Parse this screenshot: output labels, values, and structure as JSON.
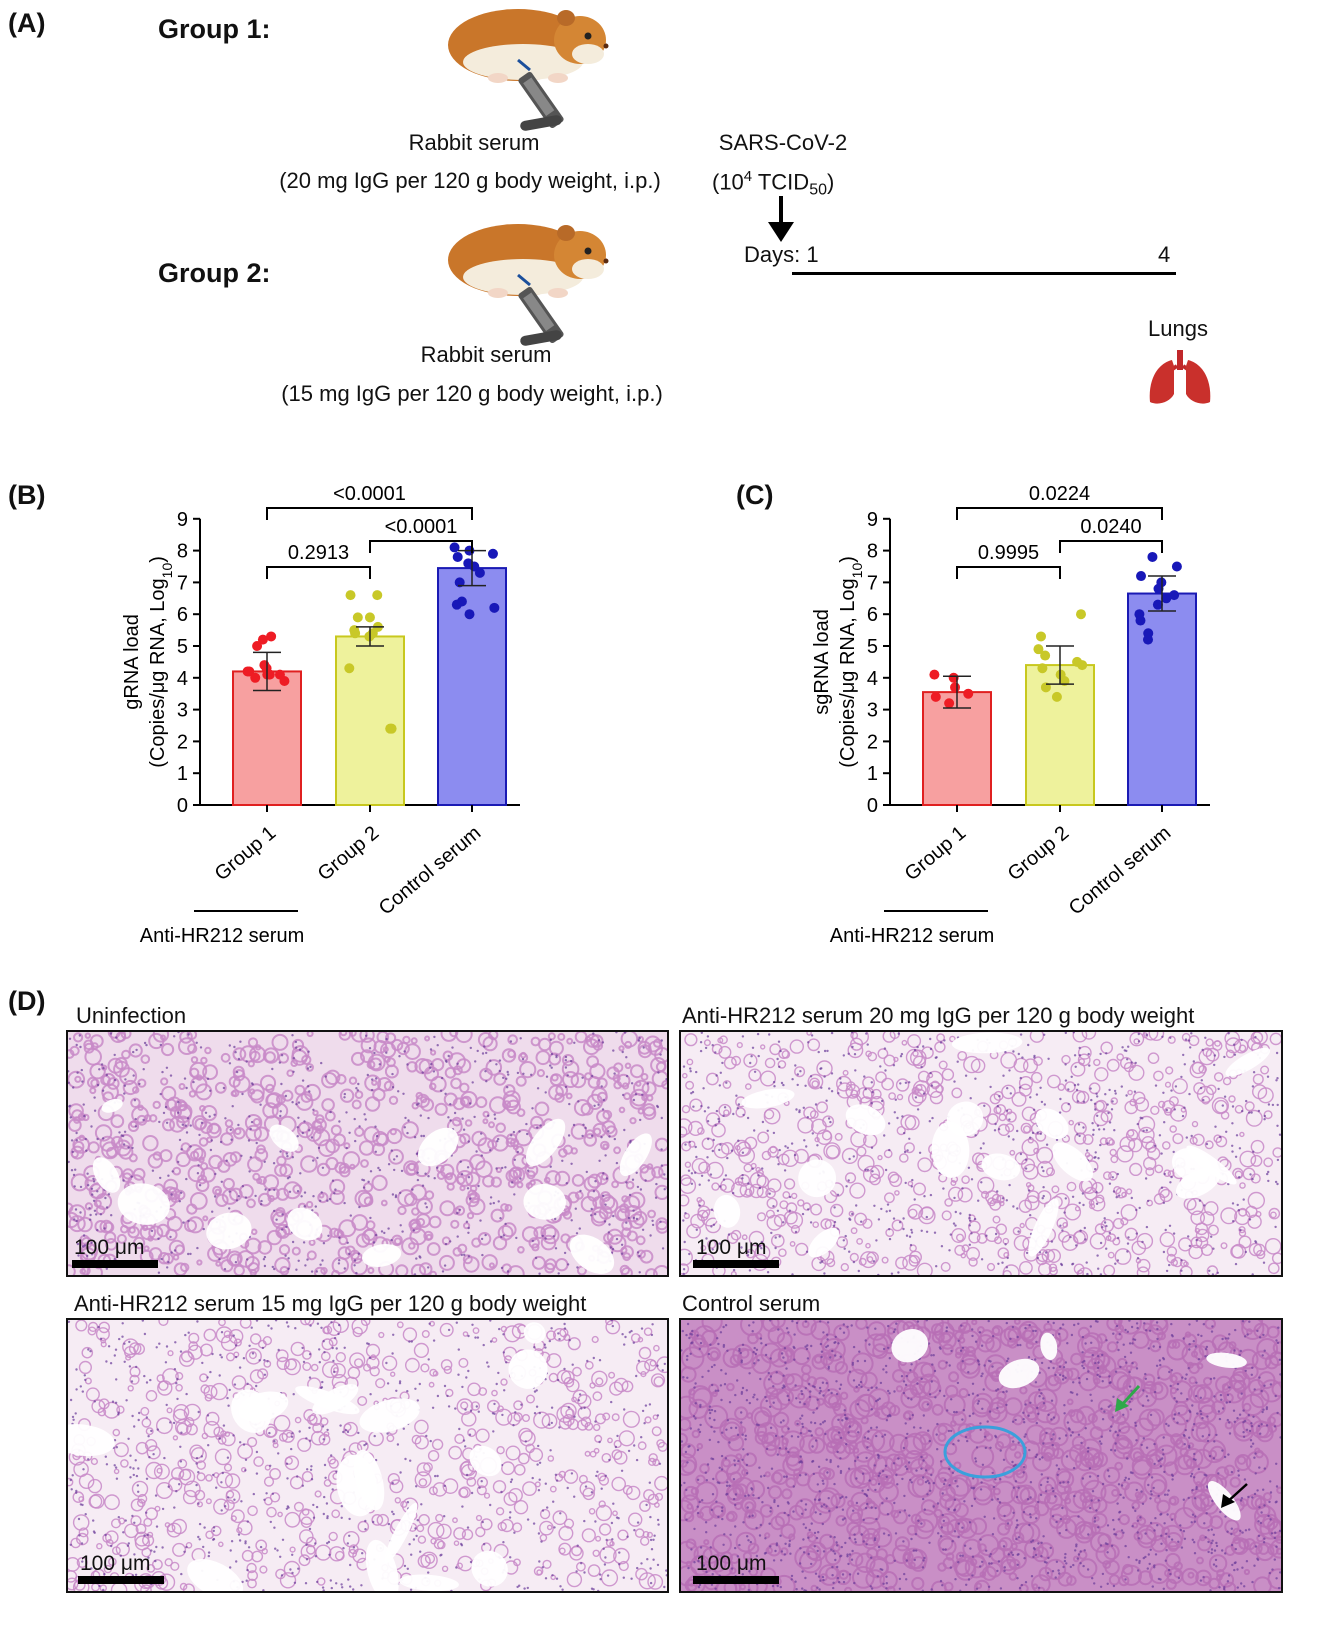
{
  "panel_a": {
    "letter": "(A)",
    "group1_label": "Group 1:",
    "group2_label": "Group 2:",
    "serum1_line1": "Rabbit serum",
    "serum1_line2": "(20 mg IgG per 120 g body weight, i.p.)",
    "serum2_line1": "Rabbit serum",
    "serum2_line2": "(15 mg IgG per 120 g body weight, i.p.)",
    "virus_line1": "SARS-CoV-2",
    "virus_line2_pre": "(10",
    "virus_line2_sup": "4",
    "virus_line2_mid": " TCID",
    "virus_line2_sub": "50",
    "virus_line2_post": ")",
    "days_label": "Days: 1",
    "day_end": "4",
    "lungs_label": "Lungs",
    "icons": [
      "hamster-icon",
      "syringe-icon",
      "down-arrow-icon",
      "lungs-icon"
    ]
  },
  "panel_b": {
    "letter": "(B)"
  },
  "panel_c": {
    "letter": "(C)"
  },
  "chart_data": [
    {
      "type": "bar",
      "panel": "B",
      "ylabel_line1": "gRNA load",
      "ylabel_line2_pre": "(Copies/μg RNA, Log",
      "ylabel_line2_sub": "10",
      "ylabel_line2_post": ")",
      "ylim": [
        0,
        9
      ],
      "yticks": [
        "0",
        "1",
        "2",
        "3",
        "4",
        "5",
        "6",
        "7",
        "8",
        "9"
      ],
      "categories": [
        "Group 1",
        "Group 2",
        "Control serum"
      ],
      "group_label": "Anti-HR212 serum",
      "colors": {
        "fill": [
          "#f7a0a0",
          "#eef29c",
          "#8c8cf0"
        ],
        "stroke": [
          "#e02020",
          "#c8c81e",
          "#1a1ab4"
        ],
        "points": [
          "#ee1c24",
          "#c8c828",
          "#1818b8"
        ]
      },
      "means": [
        4.2,
        5.3,
        7.45
      ],
      "sd": [
        0.6,
        0.3,
        0.55
      ],
      "points": [
        [
          4.3,
          4.1,
          4.2,
          4.0,
          4.4,
          4.1,
          4.2,
          3.9,
          5.3,
          5.2,
          5.0,
          4.1
        ],
        [
          6.6,
          6.6,
          5.9,
          5.9,
          5.6,
          5.5,
          5.4,
          5.3,
          5.4,
          4.3,
          2.4,
          2.4
        ],
        [
          8.1,
          8.0,
          7.9,
          7.8,
          7.6,
          7.5,
          7.3,
          6.4,
          6.3,
          6.2,
          6.0,
          7.0
        ]
      ],
      "comparisons": [
        {
          "from": 0,
          "to": 1,
          "label": "0.2913"
        },
        {
          "from": 1,
          "to": 2,
          "label": "<0.0001"
        },
        {
          "from": 0,
          "to": 2,
          "label": "<0.0001"
        }
      ]
    },
    {
      "type": "bar",
      "panel": "C",
      "ylabel_line1": "sgRNA load",
      "ylabel_line2_pre": "(Copies/μg RNA, Log",
      "ylabel_line2_sub": "10",
      "ylabel_line2_post": ")",
      "ylim": [
        0,
        9
      ],
      "yticks": [
        "0",
        "1",
        "2",
        "3",
        "4",
        "5",
        "6",
        "7",
        "8",
        "9"
      ],
      "categories": [
        "Group 1",
        "Group 2",
        "Control serum"
      ],
      "group_label": "Anti-HR212 serum",
      "colors": {
        "fill": [
          "#f7a0a0",
          "#eef29c",
          "#8c8cf0"
        ],
        "stroke": [
          "#e02020",
          "#c8c81e",
          "#1a1ab4"
        ],
        "points": [
          "#ee1c24",
          "#c8c828",
          "#1818b8"
        ]
      },
      "means": [
        3.55,
        4.4,
        6.65
      ],
      "sd": [
        0.5,
        0.6,
        0.55
      ],
      "points": [
        [
          4.1,
          4.0,
          3.7,
          3.4,
          3.5,
          3.2
        ],
        [
          6.0,
          5.3,
          4.9,
          4.7,
          4.5,
          4.4,
          4.3,
          4.1,
          3.9,
          3.7,
          3.4
        ],
        [
          7.8,
          7.5,
          7.2,
          7.0,
          6.8,
          6.6,
          6.5,
          6.3,
          6.0,
          5.8,
          5.4,
          5.2
        ]
      ],
      "comparisons": [
        {
          "from": 0,
          "to": 1,
          "label": "0.9995"
        },
        {
          "from": 1,
          "to": 2,
          "label": "0.0240"
        },
        {
          "from": 0,
          "to": 2,
          "label": "0.0224"
        }
      ]
    }
  ],
  "panel_d": {
    "letter": "(D)",
    "images": [
      {
        "title": "Uninfection",
        "scale": "100 μm",
        "density": "normal"
      },
      {
        "title": "Anti-HR212 serum 20 mg IgG per 120 g body weight",
        "scale": "100 μm",
        "density": "sparse"
      },
      {
        "title": "Anti-HR212 serum 15 mg IgG per 120 g body weight",
        "scale": "100 μm",
        "density": "sparse"
      },
      {
        "title": "Control serum",
        "scale": "100 μm",
        "density": "dense"
      }
    ],
    "annotation_colors": {
      "ellipse": "#3aa0dc",
      "green_arrow": "#2ea84a",
      "black_arrow": "#000000"
    },
    "tissue_colors": {
      "background": "#f3e4f0",
      "stain": "#c889c8",
      "dense_stain": "#b76fb5",
      "nucleus": "#6b3c9a"
    }
  }
}
